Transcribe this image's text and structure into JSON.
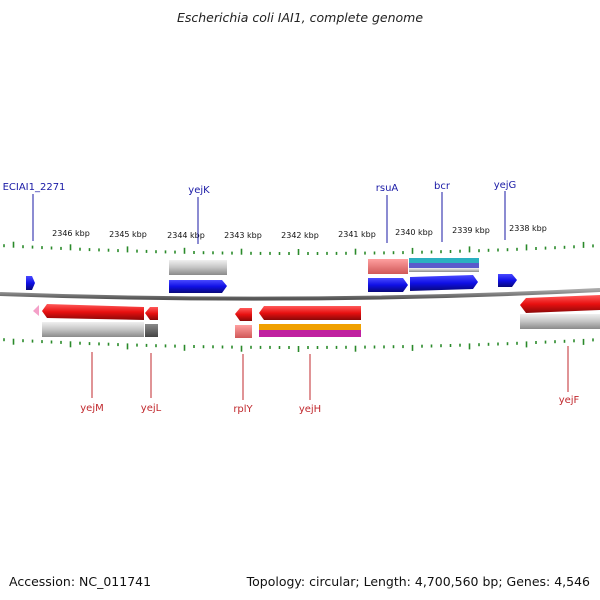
{
  "title": "Escherichia coli IAI1, complete genome",
  "footer": {
    "accession": "Accession: NC_011741",
    "topology": "Topology: circular; Length: 4,700,560 bp; Genes: 4,546"
  },
  "scale_labels": [
    "2346 kbp",
    "2345 kbp",
    "2344 kbp",
    "2343 kbp",
    "2342 kbp",
    "2341 kbp",
    "2340 kbp",
    "2339 kbp",
    "2338 kbp"
  ],
  "genes_forward": [
    {
      "name": "ECIAI1_2271"
    },
    {
      "name": "yejK"
    },
    {
      "name": "rsuA"
    },
    {
      "name": "bcr"
    },
    {
      "name": "yejG"
    }
  ],
  "genes_reverse": [
    {
      "name": "yejM"
    },
    {
      "name": "yejL"
    },
    {
      "name": "rplY"
    },
    {
      "name": "yejH"
    },
    {
      "name": "yejF"
    }
  ],
  "colors": {
    "forward_label": "#1a1aa6",
    "reverse_label": "#c0282d",
    "forward_gene": "#1010e0",
    "reverse_gene": "#e01010",
    "tick": "#2a8a2a",
    "backbone": "#808080"
  }
}
